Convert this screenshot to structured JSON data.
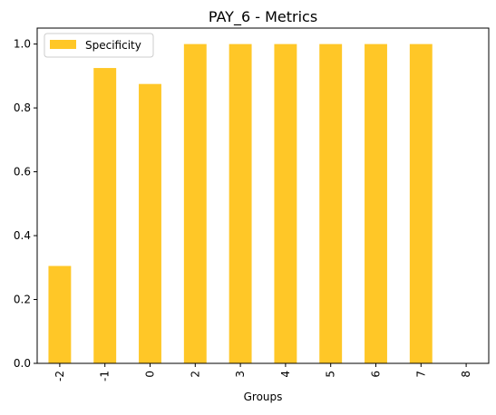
{
  "chart_data": {
    "type": "bar",
    "title": "PAY_6 - Metrics",
    "xlabel": "Groups",
    "ylabel": "",
    "categories": [
      "-2",
      "-1",
      "0",
      "2",
      "3",
      "4",
      "5",
      "6",
      "7",
      "8"
    ],
    "series": [
      {
        "name": "Specificity",
        "values": [
          0.305,
          0.925,
          0.875,
          1.0,
          1.0,
          1.0,
          1.0,
          1.0,
          1.0,
          0.0
        ],
        "color": "#FFC727"
      }
    ],
    "ylim": [
      0,
      1.05
    ],
    "yticks": [
      "0.0",
      "0.2",
      "0.4",
      "0.6",
      "0.8",
      "1.0"
    ],
    "grid": false,
    "legend_position": "top-left",
    "x_tick_rotation": "vertical"
  }
}
